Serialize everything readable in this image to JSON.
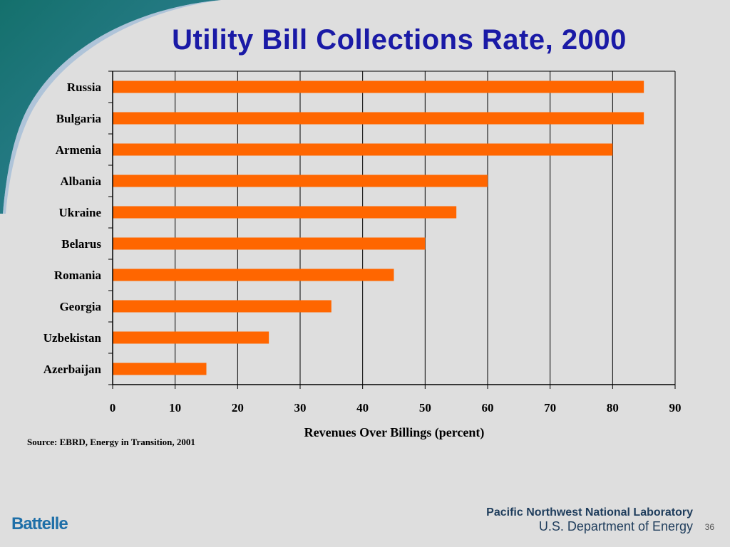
{
  "slide": {
    "title": "Utility Bill Collections Rate, 2000",
    "source": "Source: EBRD, Energy in Transition, 2001",
    "page_number": "36"
  },
  "footer": {
    "left_logo": "Battelle",
    "lab_name": "Pacific Northwest National Laboratory",
    "department": "U.S. Department of Energy"
  },
  "colors": {
    "bar": "#ff6600",
    "title": "#1a1aa6",
    "swoosh": "#1f7a78"
  },
  "chart_data": {
    "type": "bar",
    "orientation": "horizontal",
    "categories": [
      "Russia",
      "Bulgaria",
      "Armenia",
      "Albania",
      "Ukraine",
      "Belarus",
      "Romania",
      "Georgia",
      "Uzbekistan",
      "Azerbaijan"
    ],
    "values": [
      85,
      85,
      80,
      60,
      55,
      50,
      45,
      35,
      25,
      15
    ],
    "xlabel": "Revenues Over Billings (percent)",
    "ylabel": "",
    "xlim": [
      0,
      90
    ],
    "xticks": [
      0,
      10,
      20,
      30,
      40,
      50,
      60,
      70,
      80,
      90
    ],
    "grid": "vertical",
    "legend": "none"
  }
}
